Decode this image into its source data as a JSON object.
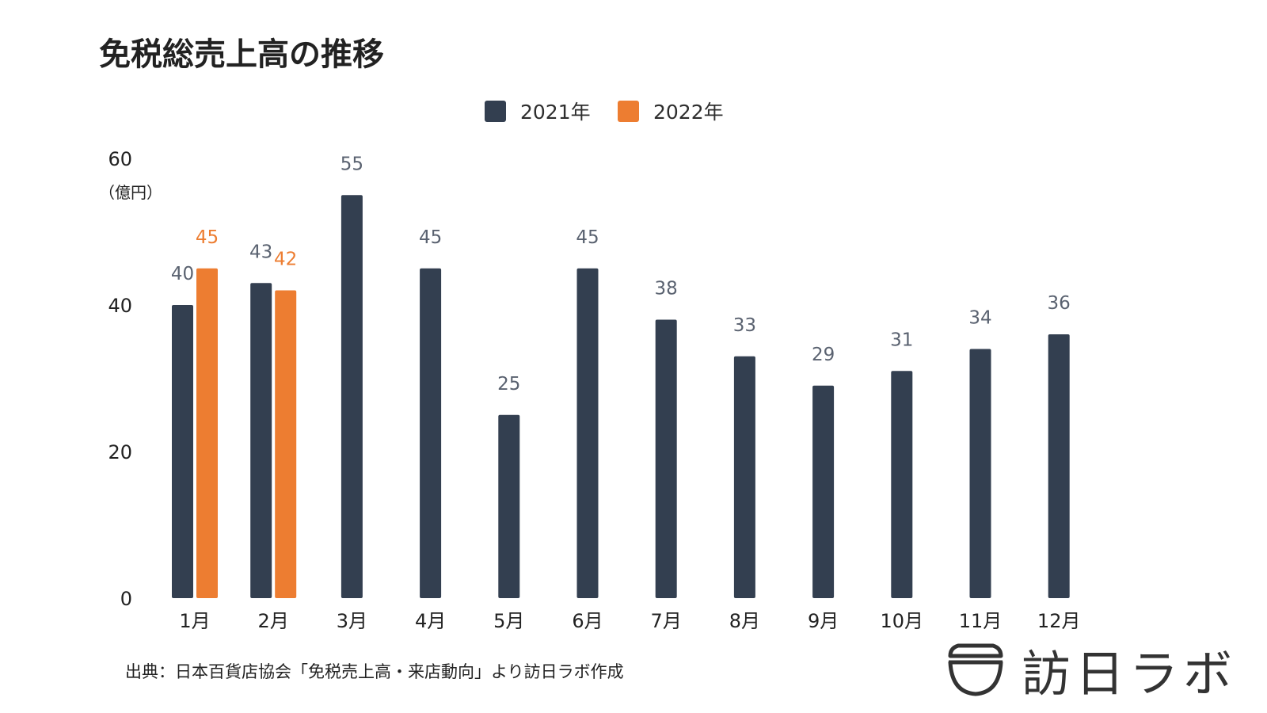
{
  "chart_data": {
    "type": "bar",
    "title": "免税総売上高の推移",
    "unit_label": "（億円）",
    "categories": [
      "1月",
      "2月",
      "3月",
      "4月",
      "5月",
      "6月",
      "7月",
      "8月",
      "9月",
      "10月",
      "11月",
      "12月"
    ],
    "series": [
      {
        "name": "2021年",
        "color": "#333f50",
        "values": [
          40,
          43,
          55,
          45,
          25,
          45,
          38,
          33,
          29,
          31,
          34,
          36
        ]
      },
      {
        "name": "2022年",
        "color": "#ed7d31",
        "values": [
          45,
          42,
          null,
          null,
          null,
          null,
          null,
          null,
          null,
          null,
          null,
          null
        ]
      }
    ],
    "yticks": [
      0,
      20,
      40,
      60
    ],
    "ylim": [
      0,
      60
    ],
    "legend_position": "top-center",
    "grid": false,
    "value_label_color_2021": "#5a6270",
    "value_label_color_2022": "#ed7d31"
  },
  "footer": {
    "source": "出典：日本百貨店協会「免税売上高・来店動向」より訪日ラボ作成"
  },
  "logo": {
    "text": "訪日ラボ",
    "icon": "bowl-logo-icon"
  }
}
